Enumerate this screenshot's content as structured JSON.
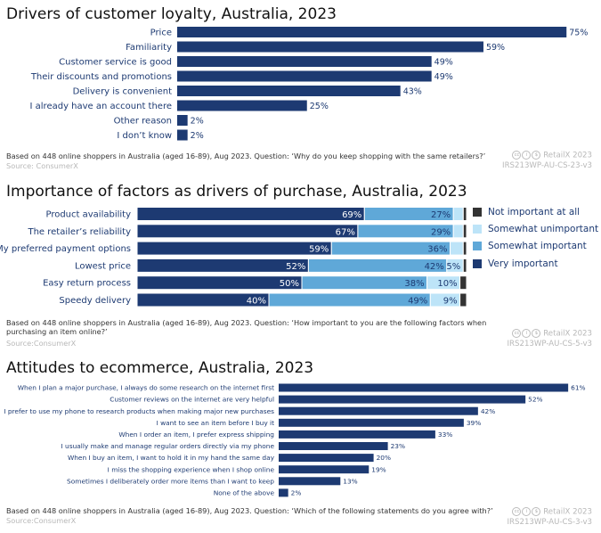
{
  "chart_data": [
    {
      "type": "bar",
      "orientation": "horizontal",
      "title": "Drivers of customer loyalty, Australia, 2023",
      "categories": [
        "Price",
        "Familiarity",
        "Customer service is good",
        "Their discounts and promotions",
        "Delivery is convenient",
        "I already have an account there",
        "Other reason",
        "I don’t know"
      ],
      "values": [
        75,
        59,
        49,
        49,
        43,
        25,
        2,
        2
      ],
      "value_labels": [
        "75%",
        "59%",
        "49%",
        "49%",
        "43%",
        "25%",
        "2%",
        "2%"
      ],
      "unit": "%",
      "color": "#1d3a72",
      "note": "Based on 448 online shoppers in Australia (aged 16-89), Aug 2023. Question: ‘Why do you keep shopping with the same retailers?’",
      "source": "Source: ConsumerX",
      "brand": "RetailX 2023",
      "code": "IRS213WP-AU-CS-23-v3"
    },
    {
      "type": "bar",
      "orientation": "horizontal",
      "stacked": true,
      "title": "Importance of factors as drivers of purchase, Australia, 2023",
      "categories": [
        "Product availability",
        "The retailer’s reliability",
        "My preferred payment options",
        "Lowest price",
        "Easy return process",
        "Speedy delivery"
      ],
      "series": [
        {
          "name": "Very important",
          "color": "#1d3a72",
          "values": [
            69,
            67,
            59,
            52,
            50,
            40
          ],
          "labels": [
            "69%",
            "67%",
            "59%",
            "52%",
            "50%",
            "40%"
          ]
        },
        {
          "name": "Somewhat important",
          "color": "#5fa8d8",
          "values": [
            27,
            29,
            36,
            42,
            38,
            49
          ],
          "labels": [
            "27%",
            "29%",
            "36%",
            "42%",
            "38%",
            "49%"
          ]
        },
        {
          "name": "Somewhat unimportant",
          "color": "#bde4f8",
          "values": [
            3,
            3,
            4,
            5,
            10,
            9
          ],
          "labels": [
            "",
            "",
            "",
            "5%",
            "10%",
            "9%"
          ]
        },
        {
          "name": "Not important at all",
          "color": "#333333",
          "values": [
            1,
            1,
            1,
            1,
            2,
            2
          ],
          "labels": [
            "",
            "",
            "",
            "",
            "",
            ""
          ]
        }
      ],
      "legend_order": [
        "Not important at all",
        "Somewhat unimportant",
        "Somewhat important",
        "Very important"
      ],
      "legend": "right",
      "note": "Based on 448 online shoppers in Australia (aged 16-89), Aug 2023. Question: ‘How important to you are the following factors when purchasing an item online?’",
      "source": "Source:ConsumerX",
      "brand": "RetailX 2023",
      "code": "IRS213WP-AU-CS-5-v3"
    },
    {
      "type": "bar",
      "orientation": "horizontal",
      "title": "Attitudes to ecommerce, Australia, 2023",
      "categories": [
        "When I plan a major purchase, I always do some research on the internet first",
        "Customer reviews on the internet are very helpful",
        "I prefer to use my phone to research products  when making major new purchases",
        "I want to see an item before I buy it",
        "When I order an item, I prefer express shipping",
        "I usually make and manage regular orders directly via my phone",
        "When I buy an item, I want to hold it in my hand  the same day",
        "I miss the shopping experience when I shop online",
        "Sometimes I deliberately order more items than I want to  keep",
        "None of the above"
      ],
      "values": [
        61,
        52,
        42,
        39,
        33,
        23,
        20,
        19,
        13,
        2
      ],
      "value_labels": [
        "61%",
        "52%",
        "42%",
        "39%",
        "33%",
        "23%",
        "20%",
        "19%",
        "13%",
        "2%"
      ],
      "unit": "%",
      "color": "#1d3a72",
      "note": "Based on 448 online shoppers in Australia (aged 16-89), Aug 2023. Question: ‘Which of the following statements do you agree with?’",
      "source": "Source:ConsumerX",
      "brand": "RetailX 2023",
      "code": "IRS213WP-AU-CS-3-v3"
    }
  ]
}
